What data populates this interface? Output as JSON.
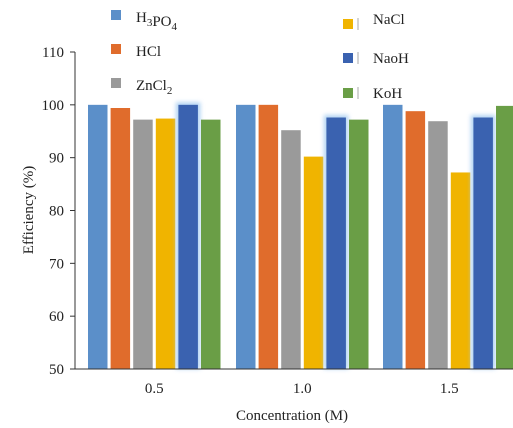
{
  "chart_data": {
    "type": "bar",
    "xlabel": "Concentration (M)",
    "ylabel": "Efficiency (%)",
    "ylim": [
      50,
      110
    ],
    "yticks": [
      50,
      60,
      70,
      80,
      90,
      100,
      110
    ],
    "categories": [
      "0.5",
      "1.0",
      "1.5"
    ],
    "grid": false,
    "legend_placement": "top",
    "series": [
      {
        "name": "H3PO4",
        "color": "#5B8FC9",
        "values": [
          100,
          100,
          100
        ]
      },
      {
        "name": "HCl",
        "color": "#E06C2C",
        "values": [
          99.4,
          100,
          98.8
        ]
      },
      {
        "name": "ZnCl2",
        "color": "#9A9A9A",
        "values": [
          97.2,
          95.2,
          96.9
        ]
      },
      {
        "name": "NaCl",
        "color": "#F0B400",
        "values": [
          97.4,
          90.2,
          87.2
        ]
      },
      {
        "name": "NaoH",
        "color": "#3A62B0",
        "values": [
          100,
          97.6,
          97.6
        ]
      },
      {
        "name": "KoH",
        "color": "#6A9E46",
        "values": [
          97.2,
          97.2,
          99.8
        ]
      }
    ]
  }
}
